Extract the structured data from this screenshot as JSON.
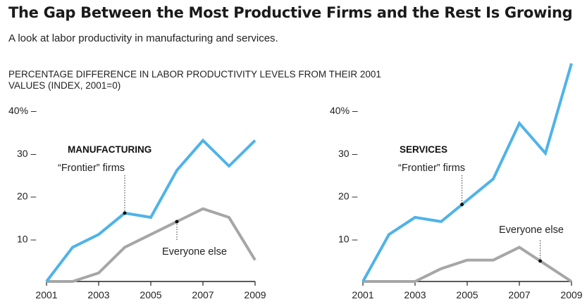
{
  "title": "The Gap Between the Most Productive Firms and the Rest Is Growing",
  "subtitle": "A look at labor productivity in manufacturing and services.",
  "unit_label": "PERCENTAGE DIFFERENCE IN LABOR PRODUCTIVITY LEVELS FROM THEIR 2001 VALUES (INDEX, 2001=0)",
  "colors": {
    "frontier": "#4fb3e8",
    "rest": "#a6a6a6",
    "axis": "#222222"
  },
  "chart_data": [
    {
      "type": "line",
      "title": "MANUFACTURING",
      "x": [
        2001,
        2002,
        2003,
        2004,
        2005,
        2006,
        2007,
        2008,
        2009
      ],
      "x_tick_labels": [
        "2001",
        "2003",
        "2005",
        "2007",
        "2009"
      ],
      "y_tick_labels": [
        "40% –",
        "30 –",
        "20 –",
        "10 –"
      ],
      "ylim": [
        0,
        40
      ],
      "series": [
        {
          "name": "“Frontier” firms",
          "key": "frontier",
          "values": [
            0,
            8,
            11,
            16,
            15,
            26,
            33,
            27,
            33
          ]
        },
        {
          "name": "Everyone else",
          "key": "rest",
          "values": [
            0,
            0,
            2,
            8,
            11,
            14,
            17,
            15,
            5
          ]
        }
      ],
      "annotations": [
        {
          "text": "“Frontier” firms",
          "series": "frontier",
          "x": 2004
        },
        {
          "text": "Everyone else",
          "series": "rest",
          "x": 2006
        }
      ]
    },
    {
      "type": "line",
      "title": "SERVICES",
      "x": [
        2001,
        2002,
        2003,
        2004,
        2005,
        2006,
        2007,
        2008,
        2009
      ],
      "x_tick_labels": [
        "2001",
        "2003",
        "2005",
        "2007",
        "2009"
      ],
      "y_tick_labels": [
        "40% –",
        "30 –",
        "20 –",
        "10 –"
      ],
      "ylim": [
        0,
        40
      ],
      "series": [
        {
          "name": "“Frontier” firms",
          "key": "frontier",
          "values": [
            0,
            11,
            15,
            14,
            19,
            24,
            37,
            30,
            51
          ]
        },
        {
          "name": "Everyone else",
          "key": "rest",
          "values": [
            0,
            0,
            0,
            3,
            5,
            5,
            8,
            4,
            0
          ]
        }
      ],
      "annotations": [
        {
          "text": "“Frontier” firms",
          "series": "frontier",
          "x": 2004.8
        },
        {
          "text": "Everyone else",
          "series": "rest",
          "x": 2007.8
        }
      ]
    }
  ]
}
